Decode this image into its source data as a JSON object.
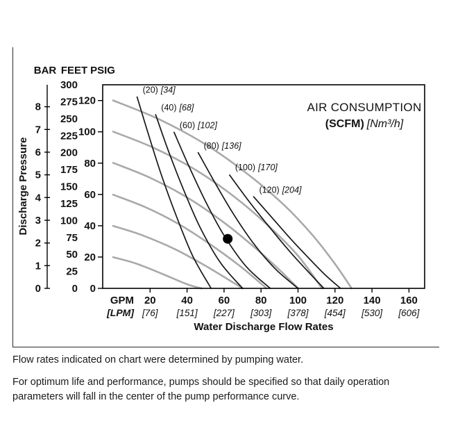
{
  "figure": {
    "y_headers": [
      "BAR",
      "FEET",
      "PSIG"
    ],
    "annotation": {
      "line1": "AIR CONSUMPTION",
      "scfm_label": "(SCFM)",
      "nm3h_label": "[Nm³/h]"
    }
  },
  "chart_data": {
    "type": "line",
    "title": "AIR CONSUMPTION (SCFM) [Nm³/h]",
    "xlabel": "Water Discharge Flow Rates",
    "ylabel": "Discharge Pressure",
    "x_axis": {
      "units_primary": "GPM",
      "units_secondary": "LPM",
      "range_gpm": [
        0,
        168
      ],
      "ticks": [
        {
          "gpm": 20,
          "lpm": 76
        },
        {
          "gpm": 40,
          "lpm": 151
        },
        {
          "gpm": 60,
          "lpm": 227
        },
        {
          "gpm": 80,
          "lpm": 303
        },
        {
          "gpm": 100,
          "lpm": 378
        },
        {
          "gpm": 120,
          "lpm": 454
        },
        {
          "gpm": 140,
          "lpm": 530
        },
        {
          "gpm": 160,
          "lpm": 606
        }
      ]
    },
    "y_axes": {
      "bar": {
        "label": "BAR",
        "ticks": [
          0,
          1,
          2,
          3,
          4,
          5,
          6,
          7,
          8
        ],
        "feet_per_bar": 33.455
      },
      "feet": {
        "label": "FEET",
        "ticks": [
          0,
          25,
          50,
          75,
          100,
          125,
          150,
          175,
          200,
          225,
          250,
          275,
          300
        ],
        "range": [
          0,
          300
        ]
      },
      "psig": {
        "label": "PSIG",
        "ticks": [
          0,
          20,
          40,
          60,
          80,
          100,
          120
        ],
        "feet_per_psi": 2.3067
      }
    },
    "performance_curves": [
      {
        "psig": 120,
        "points_gpm_feet": [
          [
            0,
            277
          ],
          [
            25,
            249
          ],
          [
            50,
            212
          ],
          [
            72,
            170
          ],
          [
            92,
            124
          ],
          [
            108,
            78
          ],
          [
            120,
            36
          ],
          [
            129,
            0
          ]
        ]
      },
      {
        "psig": 100,
        "points_gpm_feet": [
          [
            0,
            231
          ],
          [
            22,
            207
          ],
          [
            45,
            174
          ],
          [
            66,
            134
          ],
          [
            84,
            92
          ],
          [
            100,
            48
          ],
          [
            113,
            0
          ]
        ]
      },
      {
        "psig": 80,
        "points_gpm_feet": [
          [
            0,
            185
          ],
          [
            20,
            163
          ],
          [
            40,
            134
          ],
          [
            58,
            101
          ],
          [
            75,
            64
          ],
          [
            90,
            27
          ],
          [
            100,
            0
          ]
        ]
      },
      {
        "psig": 60,
        "points_gpm_feet": [
          [
            0,
            138
          ],
          [
            18,
            119
          ],
          [
            36,
            94
          ],
          [
            53,
            64
          ],
          [
            69,
            32
          ],
          [
            83,
            0
          ]
        ]
      },
      {
        "psig": 40,
        "points_gpm_feet": [
          [
            0,
            92
          ],
          [
            16,
            78
          ],
          [
            34,
            57
          ],
          [
            52,
            30
          ],
          [
            70,
            0
          ]
        ]
      },
      {
        "psig": 20,
        "points_gpm_feet": [
          [
            0,
            46
          ],
          [
            12,
            37
          ],
          [
            26,
            22
          ],
          [
            40,
            6
          ],
          [
            48,
            0
          ]
        ]
      }
    ],
    "air_consumption_curves": [
      {
        "scfm": 20,
        "nm3h": 34,
        "label_at_gpm_feet": [
          16,
          288
        ],
        "points_gpm_feet": [
          [
            13,
            282
          ],
          [
            19,
            228
          ],
          [
            26,
            168
          ],
          [
            34,
            108
          ],
          [
            43,
            48
          ],
          [
            53,
            0
          ]
        ]
      },
      {
        "scfm": 40,
        "nm3h": 68,
        "label_at_gpm_feet": [
          26,
          262
        ],
        "points_gpm_feet": [
          [
            23,
            256
          ],
          [
            30,
            202
          ],
          [
            38,
            146
          ],
          [
            47,
            90
          ],
          [
            58,
            38
          ],
          [
            70,
            0
          ]
        ]
      },
      {
        "scfm": 60,
        "nm3h": 102,
        "label_at_gpm_feet": [
          36,
          236
        ],
        "points_gpm_feet": [
          [
            33,
            230
          ],
          [
            41,
            180
          ],
          [
            50,
            128
          ],
          [
            60,
            78
          ],
          [
            72,
            32
          ],
          [
            85,
            0
          ]
        ]
      },
      {
        "scfm": 80,
        "nm3h": 136,
        "label_at_gpm_feet": [
          49,
          206
        ],
        "points_gpm_feet": [
          [
            46,
            200
          ],
          [
            55,
            156
          ],
          [
            65,
            110
          ],
          [
            76,
            66
          ],
          [
            88,
            28
          ],
          [
            100,
            0
          ]
        ]
      },
      {
        "scfm": 100,
        "nm3h": 170,
        "label_at_gpm_feet": [
          66,
          174
        ],
        "points_gpm_feet": [
          [
            63,
            167
          ],
          [
            73,
            130
          ],
          [
            84,
            92
          ],
          [
            95,
            56
          ],
          [
            105,
            26
          ],
          [
            114,
            0
          ]
        ]
      },
      {
        "scfm": 120,
        "nm3h": 204,
        "label_at_gpm_feet": [
          79,
          141
        ],
        "points_gpm_feet": [
          [
            76,
            135
          ],
          [
            86,
            104
          ],
          [
            96,
            73
          ],
          [
            106,
            44
          ],
          [
            115,
            19
          ],
          [
            123,
            0
          ]
        ]
      }
    ],
    "operating_point": {
      "gpm": 62,
      "feet": 73
    },
    "colors": {
      "performance_curve": "#a9a9a9",
      "air_curve": "#161616",
      "dot": "#000000",
      "axis": "#000000"
    },
    "grid": false,
    "legend_position": "none"
  },
  "footnotes": [
    "Flow rates indicated on chart were determined by pumping water.",
    "For optimum life and performance, pumps should be specified so that daily operation parameters will fall in the center of the pump performance curve."
  ]
}
